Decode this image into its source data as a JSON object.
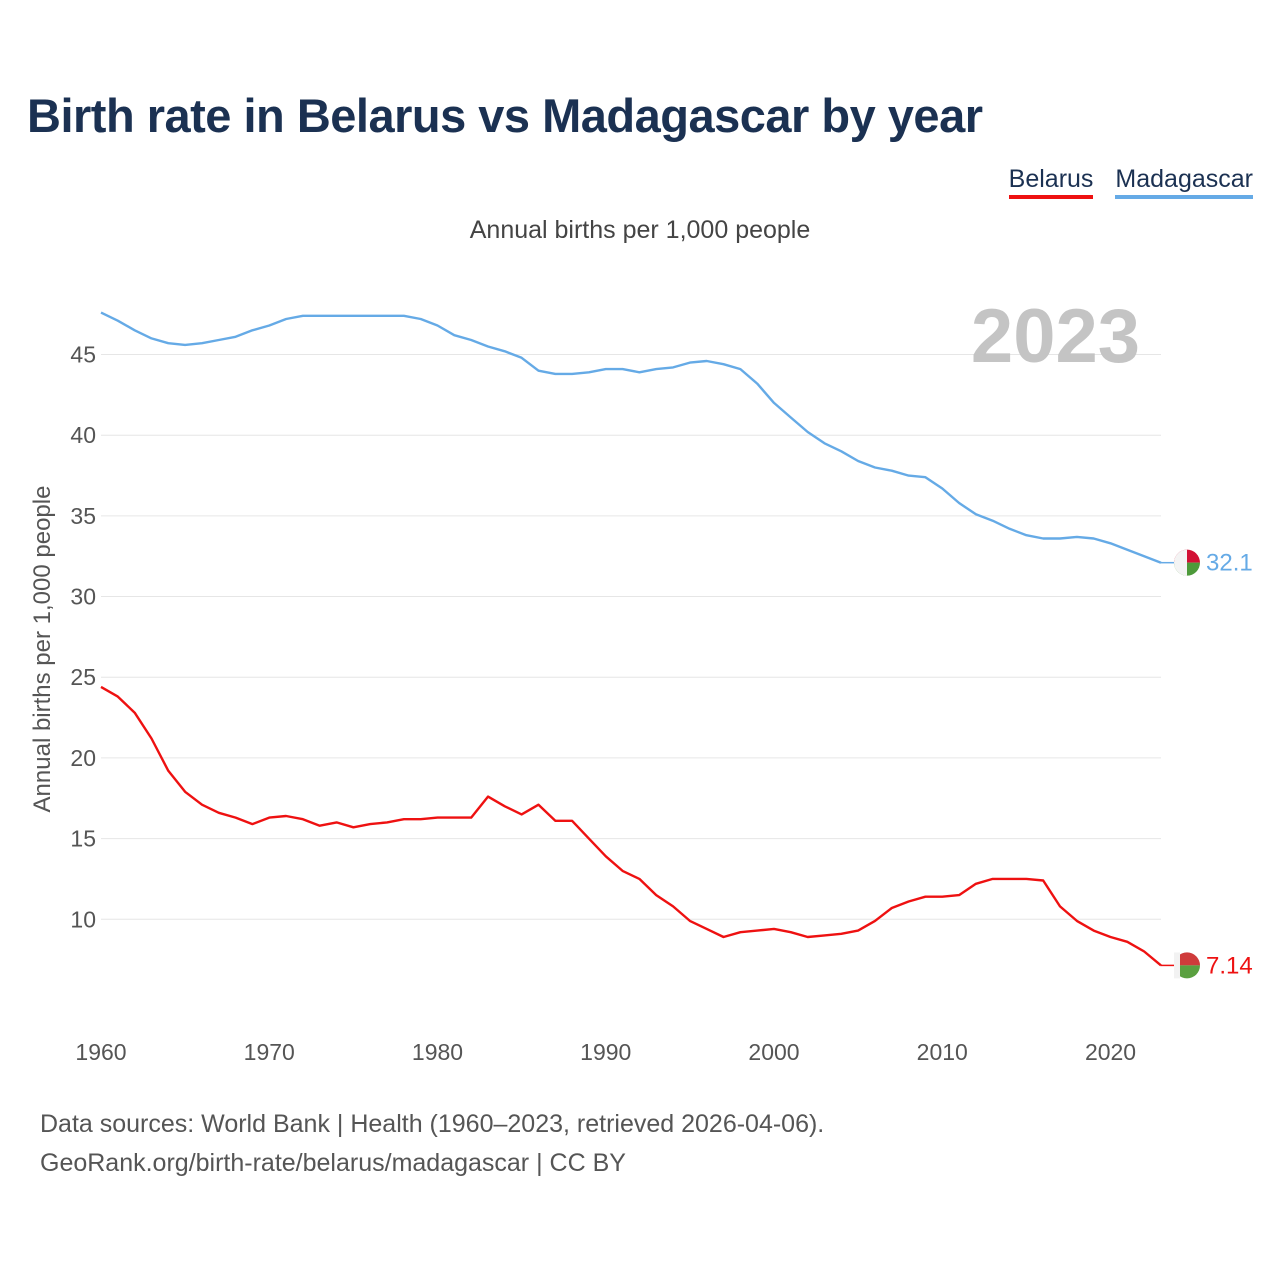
{
  "chart_data": {
    "type": "line",
    "title": "Birth rate in Belarus vs Madagascar by year",
    "subtitle": "Annual births per 1,000 people",
    "ylabel": "Annual births per 1,000 people",
    "xlabel": "",
    "year_badge": "2023",
    "x": [
      1960,
      1961,
      1962,
      1963,
      1964,
      1965,
      1966,
      1967,
      1968,
      1969,
      1970,
      1971,
      1972,
      1973,
      1974,
      1975,
      1976,
      1977,
      1978,
      1979,
      1980,
      1981,
      1982,
      1983,
      1984,
      1985,
      1986,
      1987,
      1988,
      1989,
      1990,
      1991,
      1992,
      1993,
      1994,
      1995,
      1996,
      1997,
      1998,
      1999,
      2000,
      2001,
      2002,
      2003,
      2004,
      2005,
      2006,
      2007,
      2008,
      2009,
      2010,
      2011,
      2012,
      2013,
      2014,
      2015,
      2016,
      2017,
      2018,
      2019,
      2020,
      2021,
      2022,
      2023
    ],
    "xlim": [
      1960,
      2023
    ],
    "xticks": [
      1960,
      1970,
      1980,
      1990,
      2000,
      2010,
      2020
    ],
    "ylim": [
      4.5,
      49
    ],
    "yticks": [
      10,
      15,
      20,
      25,
      30,
      35,
      40,
      45
    ],
    "grid": true,
    "legend_position": "top-right",
    "series": [
      {
        "name": "Belarus",
        "color": "#ee1111",
        "end_label": "7.14",
        "values": [
          24.4,
          23.8,
          22.8,
          21.2,
          19.2,
          17.9,
          17.1,
          16.6,
          16.3,
          15.9,
          16.3,
          16.4,
          16.2,
          15.8,
          16.0,
          15.7,
          15.9,
          16.0,
          16.2,
          16.2,
          16.3,
          16.3,
          16.3,
          17.6,
          17.0,
          16.5,
          17.1,
          16.1,
          16.1,
          15.0,
          13.9,
          13.0,
          12.5,
          11.5,
          10.8,
          9.9,
          9.4,
          8.9,
          9.2,
          9.3,
          9.4,
          9.2,
          8.9,
          9.0,
          9.1,
          9.3,
          9.9,
          10.7,
          11.1,
          11.4,
          11.4,
          11.5,
          12.2,
          12.5,
          12.5,
          12.5,
          12.4,
          10.8,
          9.9,
          9.3,
          8.9,
          8.6,
          8.0,
          7.14
        ]
      },
      {
        "name": "Madagascar",
        "color": "#65aae6",
        "end_label": "32.1",
        "values": [
          47.6,
          47.1,
          46.5,
          46.0,
          45.7,
          45.6,
          45.7,
          45.9,
          46.1,
          46.5,
          46.8,
          47.2,
          47.4,
          47.4,
          47.4,
          47.4,
          47.4,
          47.4,
          47.4,
          47.2,
          46.8,
          46.2,
          45.9,
          45.5,
          45.2,
          44.8,
          44.0,
          43.8,
          43.8,
          43.9,
          44.1,
          44.1,
          43.9,
          44.1,
          44.2,
          44.5,
          44.6,
          44.4,
          44.1,
          43.2,
          42.0,
          41.1,
          40.2,
          39.5,
          39.0,
          38.4,
          38.0,
          37.8,
          37.5,
          37.4,
          36.7,
          35.8,
          35.1,
          34.7,
          34.2,
          33.8,
          33.6,
          33.6,
          33.7,
          33.6,
          33.3,
          32.9,
          32.5,
          32.1
        ]
      }
    ]
  },
  "footer": {
    "line1": "Data sources: World Bank | Health (1960–2023, retrieved 2026-04-06).",
    "line2": "GeoRank.org/birth-rate/belarus/madagascar | CC BY"
  }
}
